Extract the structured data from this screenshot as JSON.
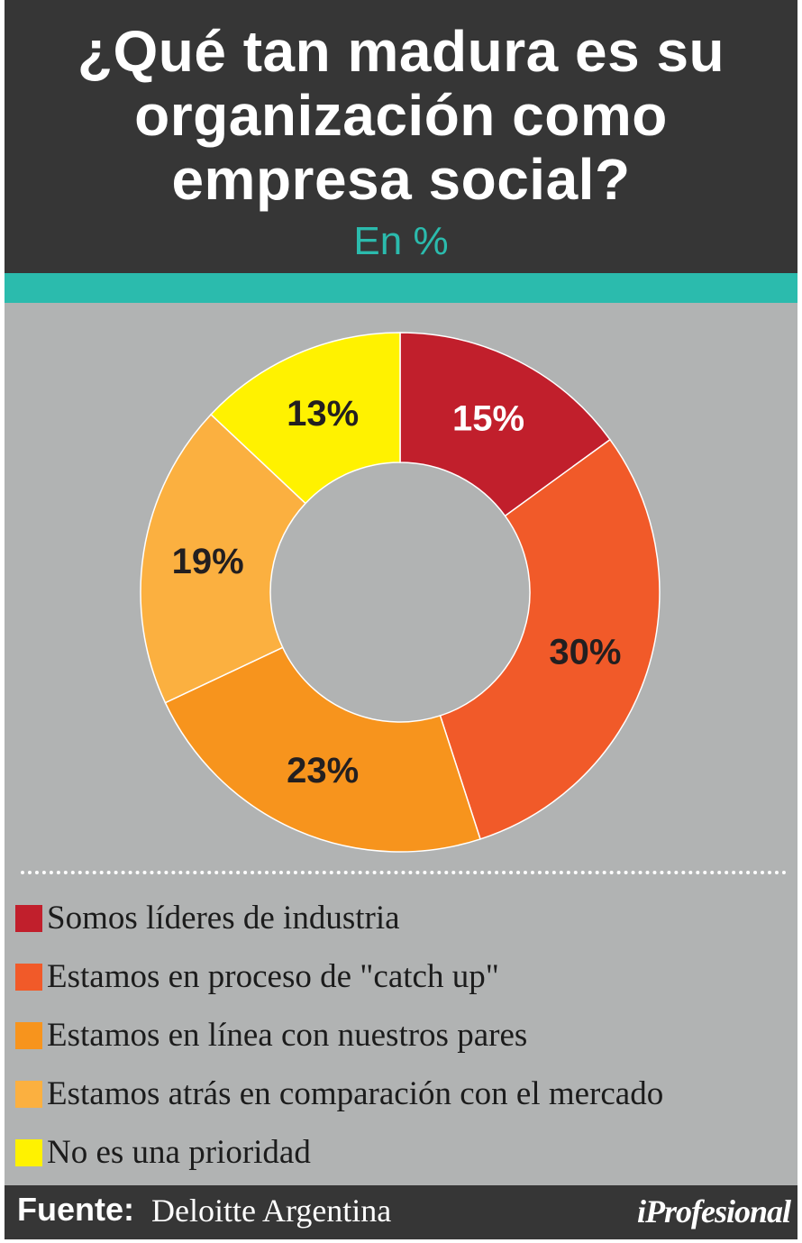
{
  "header": {
    "title_lines": [
      "¿Qué tan madura es su",
      "organización como",
      "empresa social?"
    ],
    "subtitle": "En %"
  },
  "colors": {
    "header_bg": "#363636",
    "accent": "#2bbbad",
    "panel_bg": "#b1b3b3"
  },
  "chart_data": {
    "type": "pie",
    "variant": "donut",
    "title": "¿Qué tan madura es su organización como empresa social?",
    "subtitle": "En %",
    "unit": "%",
    "slices": [
      {
        "label": "Somos líderes de industria",
        "value": 15,
        "display": "15%",
        "color": "#c11f2c",
        "label_color": "#ffffff"
      },
      {
        "label": "Estamos en proceso de \"catch up\"",
        "value": 30,
        "display": "30%",
        "color": "#f15a29",
        "label_color": "#231f20"
      },
      {
        "label": "Estamos en línea con nuestros pares",
        "value": 23,
        "display": "23%",
        "color": "#f7941d",
        "label_color": "#231f20"
      },
      {
        "label": "Estamos atrás en comparación con el mercado",
        "value": 19,
        "display": "19%",
        "color": "#fbb040",
        "label_color": "#231f20"
      },
      {
        "label": "No es una prioridad",
        "value": 13,
        "display": "13%",
        "color": "#fff200",
        "label_color": "#231f20"
      }
    ],
    "start_angle_deg": 0,
    "direction": "clockwise",
    "legend_position": "bottom"
  },
  "footer": {
    "source_label": "Fuente:",
    "source_value": "Deloitte Argentina",
    "brand": "iProfesional"
  }
}
